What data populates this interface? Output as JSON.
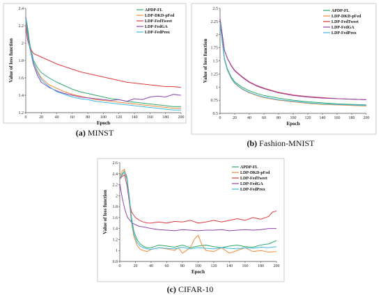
{
  "colors": {
    "APDP-FL": "#2ea86b",
    "LDP-DKD-pFed": "#f08a3c",
    "LDP-FedTweet": "#e0393e",
    "LDP-FedGA": "#8e44ad",
    "LDP-FedProx": "#3bb8e6"
  },
  "chart_data": [
    {
      "type": "line",
      "caption_letter": "(a)",
      "caption_text": " MINST",
      "xlabel": "Epoch",
      "ylabel": "Value of loss function",
      "xlim": [
        0,
        200
      ],
      "ylim": [
        1.2,
        2.4
      ],
      "xticks": [
        0,
        20,
        40,
        60,
        80,
        100,
        120,
        140,
        160,
        180,
        200
      ],
      "yticks": [
        1.2,
        1.4,
        1.6,
        1.8,
        2,
        2.2,
        2.4
      ],
      "ytick_labels": [
        "1.2",
        "1.4",
        "1.6",
        "1.8",
        "2",
        "2.2",
        "2.4"
      ],
      "legend_order": [
        "APDP-FL",
        "LDP-DKD-pFed",
        "LDP-FedTweet",
        "LDP-FedGA",
        "LDP-FedProx"
      ],
      "legend_position": "top-right",
      "series": [
        {
          "name": "APDP-FL",
          "x": [
            0,
            2,
            5,
            10,
            15,
            20,
            30,
            40,
            50,
            60,
            70,
            80,
            90,
            100,
            110,
            120,
            130,
            140,
            150,
            160,
            170,
            180,
            190,
            200
          ],
          "y": [
            2.3,
            2.2,
            2.0,
            1.8,
            1.72,
            1.66,
            1.6,
            1.55,
            1.51,
            1.47,
            1.44,
            1.42,
            1.4,
            1.38,
            1.36,
            1.35,
            1.33,
            1.32,
            1.31,
            1.3,
            1.29,
            1.28,
            1.27,
            1.27
          ]
        },
        {
          "name": "LDP-DKD-pFed",
          "x": [
            0,
            2,
            5,
            10,
            15,
            20,
            30,
            40,
            50,
            60,
            70,
            80,
            90,
            100,
            110,
            120,
            130,
            140,
            150,
            160,
            170,
            180,
            190,
            200
          ],
          "y": [
            2.25,
            2.1,
            1.95,
            1.78,
            1.68,
            1.6,
            1.52,
            1.48,
            1.44,
            1.41,
            1.39,
            1.37,
            1.35,
            1.34,
            1.33,
            1.32,
            1.31,
            1.3,
            1.29,
            1.28,
            1.27,
            1.26,
            1.25,
            1.25
          ]
        },
        {
          "name": "LDP-FedTweet",
          "x": [
            0,
            2,
            5,
            10,
            20,
            30,
            40,
            50,
            60,
            70,
            80,
            90,
            100,
            110,
            120,
            130,
            140,
            150,
            160,
            170,
            180,
            190,
            200
          ],
          "y": [
            2.2,
            2.05,
            1.95,
            1.88,
            1.84,
            1.8,
            1.76,
            1.73,
            1.7,
            1.67,
            1.65,
            1.63,
            1.61,
            1.59,
            1.57,
            1.55,
            1.54,
            1.53,
            1.52,
            1.51,
            1.5,
            1.5,
            1.49
          ]
        },
        {
          "name": "LDP-FedGA",
          "x": [
            0,
            2,
            5,
            10,
            15,
            20,
            30,
            40,
            50,
            60,
            70,
            80,
            90,
            100,
            110,
            120,
            130,
            140,
            150,
            160,
            170,
            180,
            190,
            200
          ],
          "y": [
            2.3,
            2.15,
            1.95,
            1.75,
            1.63,
            1.55,
            1.49,
            1.45,
            1.42,
            1.4,
            1.38,
            1.37,
            1.36,
            1.35,
            1.34,
            1.35,
            1.33,
            1.36,
            1.35,
            1.38,
            1.39,
            1.38,
            1.41,
            1.4
          ]
        },
        {
          "name": "LDP-FedProx",
          "x": [
            0,
            2,
            5,
            10,
            15,
            20,
            30,
            40,
            50,
            60,
            70,
            80,
            90,
            100,
            110,
            120,
            130,
            140,
            150,
            160,
            170,
            180,
            190,
            200
          ],
          "y": [
            2.28,
            2.12,
            1.95,
            1.78,
            1.66,
            1.58,
            1.5,
            1.44,
            1.41,
            1.38,
            1.36,
            1.35,
            1.33,
            1.32,
            1.31,
            1.3,
            1.29,
            1.28,
            1.27,
            1.26,
            1.25,
            1.24,
            1.23,
            1.23
          ]
        }
      ]
    },
    {
      "type": "line",
      "caption_letter": "(b)",
      "caption_text": " Fashion-MNIST",
      "xlabel": "Epoch",
      "ylabel": "Value of loss function",
      "xlim": [
        0,
        200
      ],
      "ylim": [
        0.5,
        2.5
      ],
      "xticks": [
        0,
        20,
        40,
        60,
        80,
        100,
        120,
        140,
        160,
        180,
        200
      ],
      "yticks": [
        0.5,
        0.75,
        1,
        1.25,
        1.5,
        1.75,
        2,
        2.25,
        2.5
      ],
      "ytick_labels": [
        "0.5",
        "0.75",
        "1",
        "1.25",
        "1.5",
        "1.75",
        "2",
        "2.25",
        "2.5"
      ],
      "legend_order": [
        "APDP-FL",
        "LDP-DKD-pFed",
        "LDP-FedTweet",
        "LDP-FedGA",
        "LDP-FedProx"
      ],
      "legend_position": "top-right",
      "series": [
        {
          "name": "APDP-FL",
          "x": [
            0,
            3,
            6,
            10,
            15,
            20,
            30,
            40,
            50,
            60,
            80,
            100,
            120,
            140,
            160,
            180,
            200
          ],
          "y": [
            2.25,
            1.9,
            1.55,
            1.35,
            1.2,
            1.1,
            1.0,
            0.93,
            0.88,
            0.84,
            0.79,
            0.75,
            0.72,
            0.7,
            0.68,
            0.67,
            0.66
          ]
        },
        {
          "name": "LDP-DKD-pFed",
          "x": [
            0,
            3,
            6,
            10,
            15,
            20,
            30,
            40,
            50,
            60,
            80,
            100,
            120,
            140,
            160,
            180,
            200
          ],
          "y": [
            2.2,
            1.85,
            1.52,
            1.32,
            1.17,
            1.07,
            0.96,
            0.89,
            0.84,
            0.8,
            0.75,
            0.72,
            0.69,
            0.67,
            0.66,
            0.65,
            0.64
          ]
        },
        {
          "name": "LDP-FedTweet",
          "x": [
            0,
            3,
            6,
            10,
            15,
            20,
            30,
            40,
            50,
            60,
            80,
            100,
            120,
            140,
            160,
            180,
            200
          ],
          "y": [
            2.3,
            2.0,
            1.7,
            1.55,
            1.42,
            1.32,
            1.2,
            1.1,
            1.03,
            0.98,
            0.9,
            0.85,
            0.82,
            0.8,
            0.78,
            0.77,
            0.76
          ]
        },
        {
          "name": "LDP-FedGA",
          "x": [
            0,
            3,
            6,
            10,
            15,
            20,
            30,
            40,
            50,
            60,
            80,
            100,
            120,
            140,
            160,
            180,
            200
          ],
          "y": [
            2.3,
            2.0,
            1.7,
            1.55,
            1.41,
            1.31,
            1.19,
            1.09,
            1.02,
            0.97,
            0.89,
            0.84,
            0.81,
            0.79,
            0.78,
            0.77,
            0.76
          ]
        },
        {
          "name": "LDP-FedProx",
          "x": [
            0,
            3,
            6,
            10,
            15,
            20,
            30,
            40,
            50,
            60,
            80,
            100,
            120,
            140,
            160,
            180,
            200
          ],
          "y": [
            2.22,
            1.87,
            1.53,
            1.33,
            1.18,
            1.08,
            0.97,
            0.9,
            0.85,
            0.81,
            0.76,
            0.73,
            0.7,
            0.68,
            0.67,
            0.66,
            0.65
          ]
        }
      ]
    },
    {
      "type": "line",
      "caption_letter": "(c)",
      "caption_text": " CIFAR-10",
      "xlabel": "Epoch",
      "ylabel": "Value of loss function",
      "xlim": [
        0,
        200
      ],
      "ylim": [
        0.8,
        2.6
      ],
      "xticks": [
        0,
        20,
        40,
        60,
        80,
        100,
        120,
        140,
        160,
        180,
        200
      ],
      "yticks": [
        0.8,
        1,
        1.2,
        1.4,
        1.6,
        1.8,
        2,
        2.2,
        2.4,
        2.6
      ],
      "ytick_labels": [
        "0.8",
        "1",
        "1.2",
        "1.4",
        "1.6",
        "1.8",
        "2",
        "2.2",
        "2.4",
        "2.6"
      ],
      "legend_order": [
        "APDP-FL",
        "LDP-DKD-pFed",
        "LDP-FedTweet",
        "LDP-FedGA",
        "LDP-FedProx"
      ],
      "legend_position": "top-right",
      "series": [
        {
          "name": "APDP-FL",
          "x": [
            0,
            3,
            6,
            9,
            12,
            15,
            18,
            22,
            26,
            30,
            35,
            40,
            50,
            60,
            70,
            80,
            90,
            100,
            110,
            120,
            130,
            140,
            150,
            160,
            170,
            180,
            190,
            200
          ],
          "y": [
            2.3,
            2.4,
            2.45,
            2.35,
            2.0,
            1.6,
            1.35,
            1.2,
            1.12,
            1.08,
            1.05,
            1.05,
            1.1,
            1.08,
            1.06,
            1.1,
            1.05,
            1.08,
            1.1,
            1.07,
            1.05,
            1.08,
            1.1,
            1.07,
            1.06,
            1.1,
            1.12,
            1.18
          ]
        },
        {
          "name": "LDP-DKD-pFed",
          "x": [
            0,
            3,
            6,
            9,
            12,
            15,
            18,
            22,
            26,
            30,
            35,
            40,
            50,
            60,
            70,
            75,
            80,
            85,
            90,
            95,
            100,
            105,
            110,
            120,
            130,
            140,
            150,
            160,
            170,
            180,
            190,
            200
          ],
          "y": [
            2.35,
            2.45,
            2.48,
            2.3,
            1.9,
            1.5,
            1.25,
            1.1,
            1.02,
            1.0,
            0.98,
            1.02,
            1.05,
            1.03,
            1.0,
            1.05,
            0.95,
            1.0,
            1.05,
            1.2,
            1.28,
            1.1,
            1.0,
            0.98,
            1.05,
            0.95,
            1.0,
            1.05,
            0.98,
            1.0,
            0.97,
            0.98
          ]
        },
        {
          "name": "LDP-FedTweet",
          "x": [
            0,
            3,
            6,
            9,
            12,
            15,
            20,
            25,
            30,
            35,
            40,
            50,
            60,
            70,
            80,
            90,
            100,
            110,
            120,
            130,
            140,
            150,
            160,
            170,
            180,
            190,
            195,
            200
          ],
          "y": [
            2.3,
            2.35,
            2.38,
            2.2,
            1.9,
            1.7,
            1.6,
            1.55,
            1.52,
            1.5,
            1.5,
            1.52,
            1.5,
            1.53,
            1.52,
            1.55,
            1.5,
            1.52,
            1.55,
            1.52,
            1.55,
            1.58,
            1.55,
            1.6,
            1.57,
            1.62,
            1.7,
            1.72
          ]
        },
        {
          "name": "LDP-FedGA",
          "x": [
            0,
            2,
            4,
            6,
            8,
            10,
            13,
            16,
            20,
            25,
            30,
            40,
            50,
            60,
            70,
            80,
            90,
            100,
            110,
            120,
            130,
            140,
            150,
            160,
            170,
            180,
            190,
            200
          ],
          "y": [
            2.22,
            2.05,
            1.9,
            1.78,
            1.68,
            1.6,
            1.55,
            1.5,
            1.47,
            1.44,
            1.43,
            1.4,
            1.38,
            1.37,
            1.36,
            1.38,
            1.37,
            1.36,
            1.37,
            1.37,
            1.38,
            1.36,
            1.37,
            1.38,
            1.37,
            1.38,
            1.4,
            1.4
          ]
        },
        {
          "name": "LDP-FedProx",
          "x": [
            0,
            3,
            6,
            9,
            12,
            15,
            18,
            22,
            26,
            30,
            35,
            40,
            50,
            60,
            70,
            80,
            90,
            100,
            110,
            120,
            130,
            140,
            150,
            160,
            170,
            180,
            190,
            200
          ],
          "y": [
            2.3,
            2.38,
            2.42,
            2.3,
            1.95,
            1.55,
            1.3,
            1.15,
            1.08,
            1.05,
            1.03,
            1.02,
            1.05,
            1.04,
            1.03,
            1.06,
            1.03,
            1.05,
            1.04,
            1.03,
            1.05,
            1.04,
            1.03,
            1.05,
            1.04,
            1.06,
            1.05,
            1.07
          ]
        }
      ]
    }
  ]
}
